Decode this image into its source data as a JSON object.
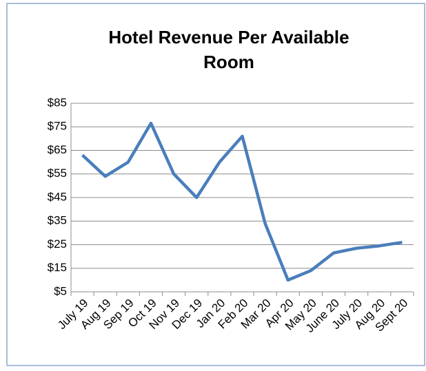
{
  "chart_data": {
    "type": "line",
    "title_lines": [
      "Hotel Revenue Per Available",
      "Room"
    ],
    "categories": [
      "July 19",
      "Aug 19",
      "Sep 19",
      "Oct 19",
      "Nov 19",
      "Dec 19",
      "Jan 20",
      "Feb 20",
      "Mar 20",
      "Apr 20",
      "May 20",
      "June 20",
      "July 20",
      "Aug 20",
      "Sept 20"
    ],
    "values": [
      63,
      54,
      60,
      76.5,
      55,
      45,
      60,
      71,
      34,
      10,
      14,
      21.5,
      23.5,
      24.5,
      26
    ],
    "color": "#4a7ebb",
    "ylim": [
      5,
      85
    ],
    "yticks": [
      {
        "value": 5,
        "label": "$5"
      },
      {
        "value": 15,
        "label": "$15"
      },
      {
        "value": 25,
        "label": "$25"
      },
      {
        "value": 35,
        "label": "$35"
      },
      {
        "value": 45,
        "label": "$45"
      },
      {
        "value": 55,
        "label": "$55"
      },
      {
        "value": 65,
        "label": "$65"
      },
      {
        "value": 75,
        "label": "$75"
      },
      {
        "value": 85,
        "label": "$85"
      }
    ],
    "grid": true
  }
}
